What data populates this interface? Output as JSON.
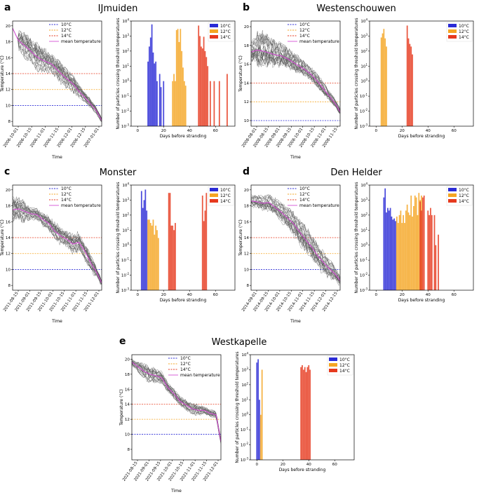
{
  "figure_labels": [
    "a",
    "b",
    "c",
    "d",
    "e"
  ],
  "legend_temp": [
    "10°C",
    "12°C",
    "14°C",
    "mean temperature"
  ],
  "legend_days": [
    "10°C",
    "12°C",
    "14°C"
  ],
  "colors": {
    "t10": "#2b2bd6",
    "t12": "#f5a623",
    "t14": "#e63a1e",
    "mean": "#d44fd4",
    "grey": "#555555"
  },
  "chart_data": [
    {
      "panel": "a",
      "title": "IJmuiden",
      "temperature": {
        "type": "line",
        "xlabel": "Time",
        "ylabel": "Temperature (°C)",
        "ylim": [
          7.4,
          20.6
        ],
        "yticks": [
          8,
          10,
          12,
          14,
          16,
          18,
          20
        ],
        "xticks": [
          "2006-10-01",
          "2006-10-15",
          "2006-11-01",
          "2006-11-15",
          "2006-12-01",
          "2006-12-15",
          "2007-01-01"
        ],
        "mean": [
          [
            0,
            19.7
          ],
          [
            0.4,
            18.2
          ],
          [
            0.8,
            17.6
          ],
          [
            1.2,
            17.0
          ],
          [
            1.6,
            16.3
          ],
          [
            2.0,
            15.8
          ],
          [
            2.4,
            15.5
          ],
          [
            2.8,
            15.2
          ],
          [
            3.2,
            14.5
          ],
          [
            3.6,
            13.8
          ],
          [
            4.0,
            13.2
          ],
          [
            4.4,
            12.6
          ],
          [
            4.8,
            11.7
          ],
          [
            5.2,
            11.0
          ],
          [
            5.6,
            10.2
          ],
          [
            6.0,
            9.4
          ],
          [
            6.4,
            8.1
          ]
        ],
        "spread": [
          0,
          1.0,
          1.3,
          1.2,
          1.4,
          1.2,
          1.0,
          1.0,
          1.1,
          1.0,
          0.9,
          0.8,
          0.6,
          0.5,
          0.4,
          0.3,
          0.2
        ],
        "xlim": [
          0,
          6.4
        ]
      },
      "days": {
        "type": "bar",
        "xlabel": "Days before stranding",
        "ylabel": "Number of particles crossing threshold temperatures",
        "xlim": [
          -5,
          75
        ],
        "xticks": [
          0,
          20,
          40,
          60
        ],
        "yexp": [
          -3,
          4
        ],
        "series": [
          {
            "name": "10°C",
            "x": [
              8,
              9,
              10,
              11,
              12,
              13,
              14,
              15,
              17,
              18,
              20
            ],
            "values": [
              20,
              200,
              800,
              6000,
              80,
              15,
              20,
              1,
              3,
              0.4,
              1
            ]
          },
          {
            "name": "12°C",
            "x": [
              27,
              28,
              29,
              30,
              31,
              32,
              33,
              34,
              35,
              36,
              37
            ],
            "values": [
              1,
              3,
              1,
              2500,
              3000,
              400,
              3000,
              100,
              8,
              1,
              0.5
            ]
          },
          {
            "name": "14°C",
            "x": [
              47,
              48,
              49,
              50,
              51,
              52,
              53,
              54,
              56,
              59,
              63,
              69
            ],
            "values": [
              5000,
              1000,
              200,
              150,
              900,
              100,
              40,
              10,
              1,
              1,
              1,
              3
            ]
          }
        ]
      }
    },
    {
      "panel": "b",
      "title": "Westenschouwen",
      "temperature": {
        "type": "line",
        "xlabel": "Time",
        "ylabel": "Temperature (°C)",
        "ylim": [
          9.4,
          20.6
        ],
        "yticks": [
          10,
          12,
          14,
          16,
          18,
          20
        ],
        "xticks": [
          "2008-08-01",
          "2008-08-15",
          "2008-09-01",
          "2008-09-15",
          "2008-10-01",
          "2008-10-15",
          "2008-11-01",
          "2008-11-15"
        ],
        "mean": [
          [
            0,
            17.3
          ],
          [
            0.5,
            17.5
          ],
          [
            1.0,
            17.4
          ],
          [
            1.5,
            17.2
          ],
          [
            2.0,
            17.0
          ],
          [
            2.5,
            16.9
          ],
          [
            3.0,
            16.6
          ],
          [
            3.5,
            16.2
          ],
          [
            4.0,
            15.8
          ],
          [
            4.5,
            15.4
          ],
          [
            5.0,
            14.9
          ],
          [
            5.5,
            14.2
          ],
          [
            6.0,
            13.4
          ],
          [
            6.5,
            12.6
          ],
          [
            7.0,
            11.8
          ],
          [
            7.4,
            10.9
          ]
        ],
        "spread": [
          1.0,
          1.6,
          1.5,
          1.3,
          1.1,
          1.0,
          0.9,
          0.8,
          0.7,
          0.6,
          0.6,
          0.6,
          0.5,
          0.4,
          0.3,
          0.2
        ],
        "xlim": [
          0,
          7.4
        ]
      },
      "days": {
        "type": "bar",
        "xlabel": "Days before stranding",
        "ylabel": "Number of particles crossing threshold temperatures",
        "xlim": [
          -5,
          75
        ],
        "xticks": [
          0,
          20,
          40,
          60
        ],
        "yexp": [
          -3,
          4
        ],
        "series": [
          {
            "name": "10°C",
            "x": [],
            "values": []
          },
          {
            "name": "12°C",
            "x": [
              4,
              5,
              6,
              7,
              8
            ],
            "values": [
              800,
              1500,
              3000,
              700,
              200
            ]
          },
          {
            "name": "14°C",
            "x": [
              24,
              25,
              26,
              27,
              28
            ],
            "values": [
              5000,
              700,
              300,
              200,
              60
            ]
          }
        ]
      }
    },
    {
      "panel": "c",
      "title": "Monster",
      "temperature": {
        "type": "line",
        "xlabel": "Time",
        "ylabel": "Temperature (°C)",
        "ylim": [
          7.4,
          20.6
        ],
        "yticks": [
          8,
          10,
          12,
          14,
          16,
          18,
          20
        ],
        "xticks": [
          "2011-08-15",
          "2011-09-01",
          "2011-09-15",
          "2011-10-01",
          "2011-10-15",
          "2011-11-01",
          "2011-11-15",
          "2011-12-01"
        ],
        "mean": [
          [
            0,
            17.5
          ],
          [
            0.5,
            17.6
          ],
          [
            1.0,
            17.3
          ],
          [
            1.5,
            17.0
          ],
          [
            2.0,
            16.9
          ],
          [
            2.5,
            16.3
          ],
          [
            3.0,
            15.8
          ],
          [
            3.5,
            14.8
          ],
          [
            4.0,
            14.2
          ],
          [
            4.5,
            13.8
          ],
          [
            5.0,
            13.2
          ],
          [
            5.5,
            13.4
          ],
          [
            6.0,
            12.3
          ],
          [
            6.5,
            10.8
          ],
          [
            7.0,
            9.6
          ],
          [
            7.4,
            8.3
          ]
        ],
        "spread": [
          1.2,
          1.3,
          0.8,
          0.6,
          0.6,
          0.7,
          0.8,
          0.9,
          0.8,
          0.9,
          1.0,
          0.9,
          0.9,
          0.7,
          0.4,
          0.2
        ],
        "xlim": [
          0,
          7.4
        ]
      },
      "days": {
        "type": "bar",
        "xlabel": "Days before stranding",
        "ylabel": "Number of particles crossing threshold temperatures",
        "xlim": [
          -5,
          75
        ],
        "xticks": [
          0,
          20,
          40,
          60
        ],
        "yexp": [
          -3,
          4
        ],
        "series": [
          {
            "name": "10°C",
            "x": [
              3,
              4,
              5,
              6,
              7
            ],
            "values": [
              4000,
              300,
              1000,
              5000,
              200
            ]
          },
          {
            "name": "12°C",
            "x": [
              8,
              9,
              10,
              11,
              12,
              13,
              14,
              15,
              16
            ],
            "values": [
              50,
              50,
              30,
              20,
              50,
              5,
              20,
              10,
              3
            ]
          },
          {
            "name": "14°C",
            "x": [
              24,
              25,
              26,
              27,
              28,
              29,
              50,
              51,
              52,
              53
            ],
            "values": [
              3000,
              3000,
              20,
              20,
              10,
              30,
              2000,
              40,
              200,
              3000
            ]
          }
        ]
      }
    },
    {
      "panel": "d",
      "title": "Den Helder",
      "temperature": {
        "type": "line",
        "xlabel": "Time",
        "ylabel": "Temperature (°C)",
        "ylim": [
          7.4,
          20.6
        ],
        "yticks": [
          8,
          10,
          12,
          14,
          16,
          18,
          20
        ],
        "xticks": [
          "2014-09-01",
          "2014-09-15",
          "2014-10-01",
          "2014-10-15",
          "2014-11-01",
          "2014-11-15",
          "2014-12-01",
          "2014-12-15"
        ],
        "mean": [
          [
            0,
            18.6
          ],
          [
            0.5,
            18.5
          ],
          [
            1.0,
            18.3
          ],
          [
            1.5,
            18.4
          ],
          [
            2.0,
            17.8
          ],
          [
            2.5,
            17.2
          ],
          [
            3.0,
            16.5
          ],
          [
            3.5,
            15.8
          ],
          [
            4.0,
            14.8
          ],
          [
            4.5,
            13.8
          ],
          [
            5.0,
            12.9
          ],
          [
            5.5,
            11.8
          ],
          [
            6.0,
            10.9
          ],
          [
            6.5,
            10.1
          ],
          [
            7.0,
            9.4
          ],
          [
            7.4,
            8.6
          ]
        ],
        "spread": [
          0.6,
          0.7,
          0.8,
          0.8,
          0.9,
          1.0,
          1.1,
          1.2,
          1.3,
          1.3,
          1.3,
          1.2,
          1.1,
          0.9,
          0.6,
          0.3
        ],
        "xlim": [
          0,
          7.4
        ]
      },
      "days": {
        "type": "bar",
        "xlabel": "Days before stranding",
        "ylabel": "Number of particles crossing threshold temperatures",
        "xlim": [
          -5,
          75
        ],
        "xticks": [
          0,
          20,
          40,
          60
        ],
        "yexp": [
          -3,
          4
        ],
        "series": [
          {
            "name": "10°C",
            "x": [
              6,
              7,
              8,
              9,
              10,
              11,
              12,
              13,
              14,
              15
            ],
            "values": [
              1500,
              6000,
              150,
              300,
              200,
              300,
              80,
              50,
              60,
              40
            ]
          },
          {
            "name": "12°C",
            "x": [
              16,
              17,
              18,
              19,
              20,
              21,
              22,
              23,
              24,
              25,
              26,
              27,
              28,
              29,
              30,
              31,
              32,
              33,
              34,
              35
            ],
            "values": [
              80,
              30,
              100,
              200,
              30,
              100,
              30,
              200,
              500,
              150,
              100,
              2000,
              80,
              400,
              2000,
              1500,
              100,
              3000,
              1000,
              2000
            ]
          },
          {
            "name": "14°C",
            "x": [
              34,
              35,
              36,
              37,
              40,
              41,
              42,
              43,
              45,
              46,
              48
            ],
            "values": [
              800,
              200,
              1500,
              2000,
              200,
              100,
              300,
              100,
              100,
              1,
              5
            ]
          }
        ]
      }
    },
    {
      "panel": "e",
      "title": "Westkapelle",
      "temperature": {
        "type": "line",
        "xlabel": "Time",
        "ylabel": "Temperature (°C)",
        "ylim": [
          6.6,
          20.6
        ],
        "yticks": [
          8,
          10,
          12,
          14,
          16,
          18,
          20
        ],
        "xticks": [
          "2021-08-15",
          "2021-09-01",
          "2021-09-15",
          "2021-10-01",
          "2021-10-15",
          "2021-11-01",
          "2021-11-15",
          "2021-12-01"
        ],
        "mean": [
          [
            0,
            19.6
          ],
          [
            0.5,
            19.0
          ],
          [
            1.0,
            18.4
          ],
          [
            1.5,
            18.0
          ],
          [
            2.0,
            17.8
          ],
          [
            2.5,
            17.5
          ],
          [
            3.0,
            16.2
          ],
          [
            3.5,
            15.4
          ],
          [
            4.0,
            14.4
          ],
          [
            4.5,
            13.9
          ],
          [
            5.0,
            13.4
          ],
          [
            5.5,
            13.2
          ],
          [
            6.0,
            13.2
          ],
          [
            6.5,
            12.8
          ],
          [
            7.0,
            12.6
          ],
          [
            7.4,
            9.0
          ]
        ],
        "spread": [
          0.4,
          0.7,
          0.9,
          0.8,
          0.7,
          0.6,
          0.5,
          0.5,
          0.5,
          0.6,
          0.6,
          0.5,
          0.4,
          0.4,
          0.3,
          0.2
        ],
        "xlim": [
          0,
          7.4
        ]
      },
      "days": {
        "type": "bar",
        "xlabel": "Days before stranding",
        "ylabel": "Number of particles crossing threshold temperatures",
        "xlim": [
          -5,
          75
        ],
        "xticks": [
          0,
          20,
          40,
          60
        ],
        "yexp": [
          -3,
          4
        ],
        "series": [
          {
            "name": "10°C",
            "x": [
              0,
              1,
              2
            ],
            "values": [
              3000,
              5000,
              10
            ]
          },
          {
            "name": "12°C",
            "x": [
              3,
              4
            ],
            "values": [
              1,
              1000
            ]
          },
          {
            "name": "14°C",
            "x": [
              34,
              35,
              36,
              37,
              38,
              39,
              40,
              41
            ],
            "values": [
              1500,
              2000,
              1000,
              1500,
              700,
              1500,
              2000,
              1000
            ]
          }
        ]
      }
    }
  ]
}
